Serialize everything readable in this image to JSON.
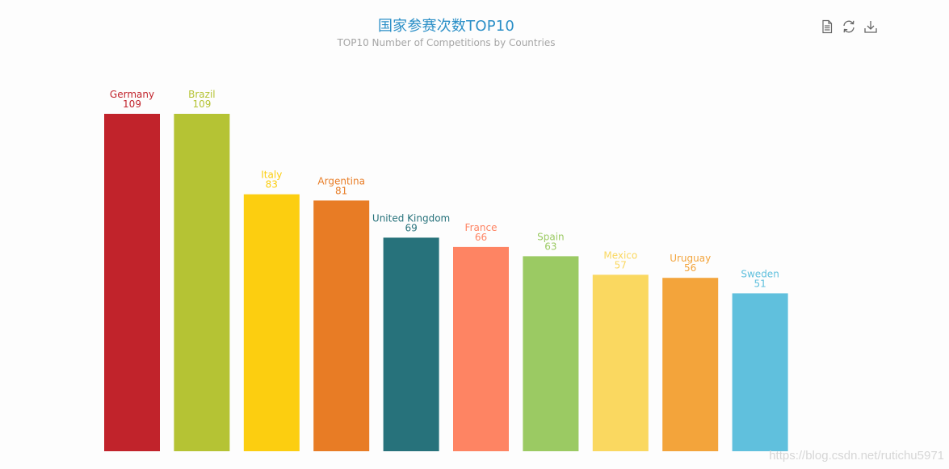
{
  "title": "国家参赛次数TOP10",
  "subtitle": "TOP10 Number of Competitions by Countries",
  "watermark": "https://blog.csdn.net/rutichu5971",
  "toolbox": {
    "icons": [
      "data-view-icon",
      "refresh-icon",
      "download-icon"
    ],
    "color": "#666666"
  },
  "chart_data": {
    "type": "bar",
    "categories": [
      "Germany",
      "Brazil",
      "Italy",
      "Argentina",
      "United Kingdom",
      "France",
      "Spain",
      "Mexico",
      "Uruguay",
      "Sweden"
    ],
    "values": [
      109,
      109,
      83,
      81,
      69,
      66,
      63,
      57,
      56,
      51
    ],
    "colors": [
      "#c1232b",
      "#b5c334",
      "#fcce10",
      "#e87c25",
      "#27727b",
      "#fe8463",
      "#9bca63",
      "#fad860",
      "#f3a43b",
      "#60c0dd"
    ],
    "ylim": [
      0,
      109
    ],
    "grid": false,
    "show_axes": false
  }
}
